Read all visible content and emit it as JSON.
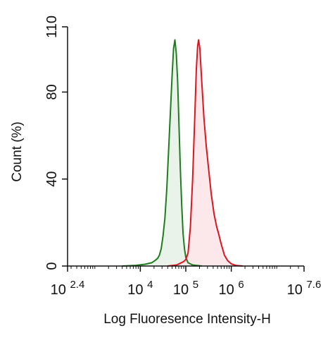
{
  "chart_data": {
    "type": "area",
    "title": "",
    "xlabel": "Log Fluoresence Intensity-H",
    "ylabel": "Count  (%)",
    "xscale": "log",
    "xlim": [
      2.4,
      7.6
    ],
    "ylim": [
      0,
      110
    ],
    "grid": false,
    "legend": "none",
    "x_ticks": [
      {
        "base": "10",
        "exp": "2.4",
        "log": 2.4
      },
      {
        "base": "10",
        "exp": "4",
        "log": 4
      },
      {
        "base": "10",
        "exp": "5",
        "log": 5
      },
      {
        "base": "10",
        "exp": "6",
        "log": 6
      },
      {
        "base": "10",
        "exp": "7.6",
        "log": 7.6
      }
    ],
    "y_ticks": [
      {
        "label": "0",
        "value": 0
      },
      {
        "label": "40",
        "value": 40
      },
      {
        "label": "80",
        "value": 80
      },
      {
        "label": "110",
        "value": 110
      }
    ],
    "series": [
      {
        "color": "#1e7d1e",
        "fill": "#e6f1e6",
        "points": [
          [
            3.6,
            0
          ],
          [
            3.9,
            0.3
          ],
          [
            4.1,
            0.8
          ],
          [
            4.25,
            1.5
          ],
          [
            4.32,
            2.5
          ],
          [
            4.38,
            3.5
          ],
          [
            4.42,
            5
          ],
          [
            4.46,
            8
          ],
          [
            4.5,
            14
          ],
          [
            4.54,
            22
          ],
          [
            4.58,
            35
          ],
          [
            4.62,
            52
          ],
          [
            4.66,
            70
          ],
          [
            4.7,
            88
          ],
          [
            4.73,
            100
          ],
          [
            4.76,
            104
          ],
          [
            4.79,
            98
          ],
          [
            4.82,
            85
          ],
          [
            4.85,
            65
          ],
          [
            4.88,
            45
          ],
          [
            4.91,
            28
          ],
          [
            4.94,
            15
          ],
          [
            4.97,
            8
          ],
          [
            5.0,
            4
          ],
          [
            5.05,
            1.5
          ],
          [
            5.15,
            0.5
          ],
          [
            5.35,
            0
          ]
        ]
      },
      {
        "color": "#e0141e",
        "fill": "#fce4e6",
        "points": [
          [
            4.6,
            0
          ],
          [
            4.8,
            0.5
          ],
          [
            4.95,
            2
          ],
          [
            5.0,
            3
          ],
          [
            5.05,
            6
          ],
          [
            5.1,
            18
          ],
          [
            5.15,
            40
          ],
          [
            5.2,
            70
          ],
          [
            5.23,
            90
          ],
          [
            5.26,
            101
          ],
          [
            5.28,
            104
          ],
          [
            5.31,
            100
          ],
          [
            5.35,
            85
          ],
          [
            5.4,
            68
          ],
          [
            5.45,
            55
          ],
          [
            5.5,
            45
          ],
          [
            5.56,
            33
          ],
          [
            5.62,
            24
          ],
          [
            5.68,
            18
          ],
          [
            5.72,
            15
          ],
          [
            5.78,
            10
          ],
          [
            5.85,
            5
          ],
          [
            5.92,
            2.5
          ],
          [
            6.0,
            1
          ],
          [
            6.1,
            0.3
          ],
          [
            6.25,
            0
          ]
        ]
      }
    ]
  }
}
